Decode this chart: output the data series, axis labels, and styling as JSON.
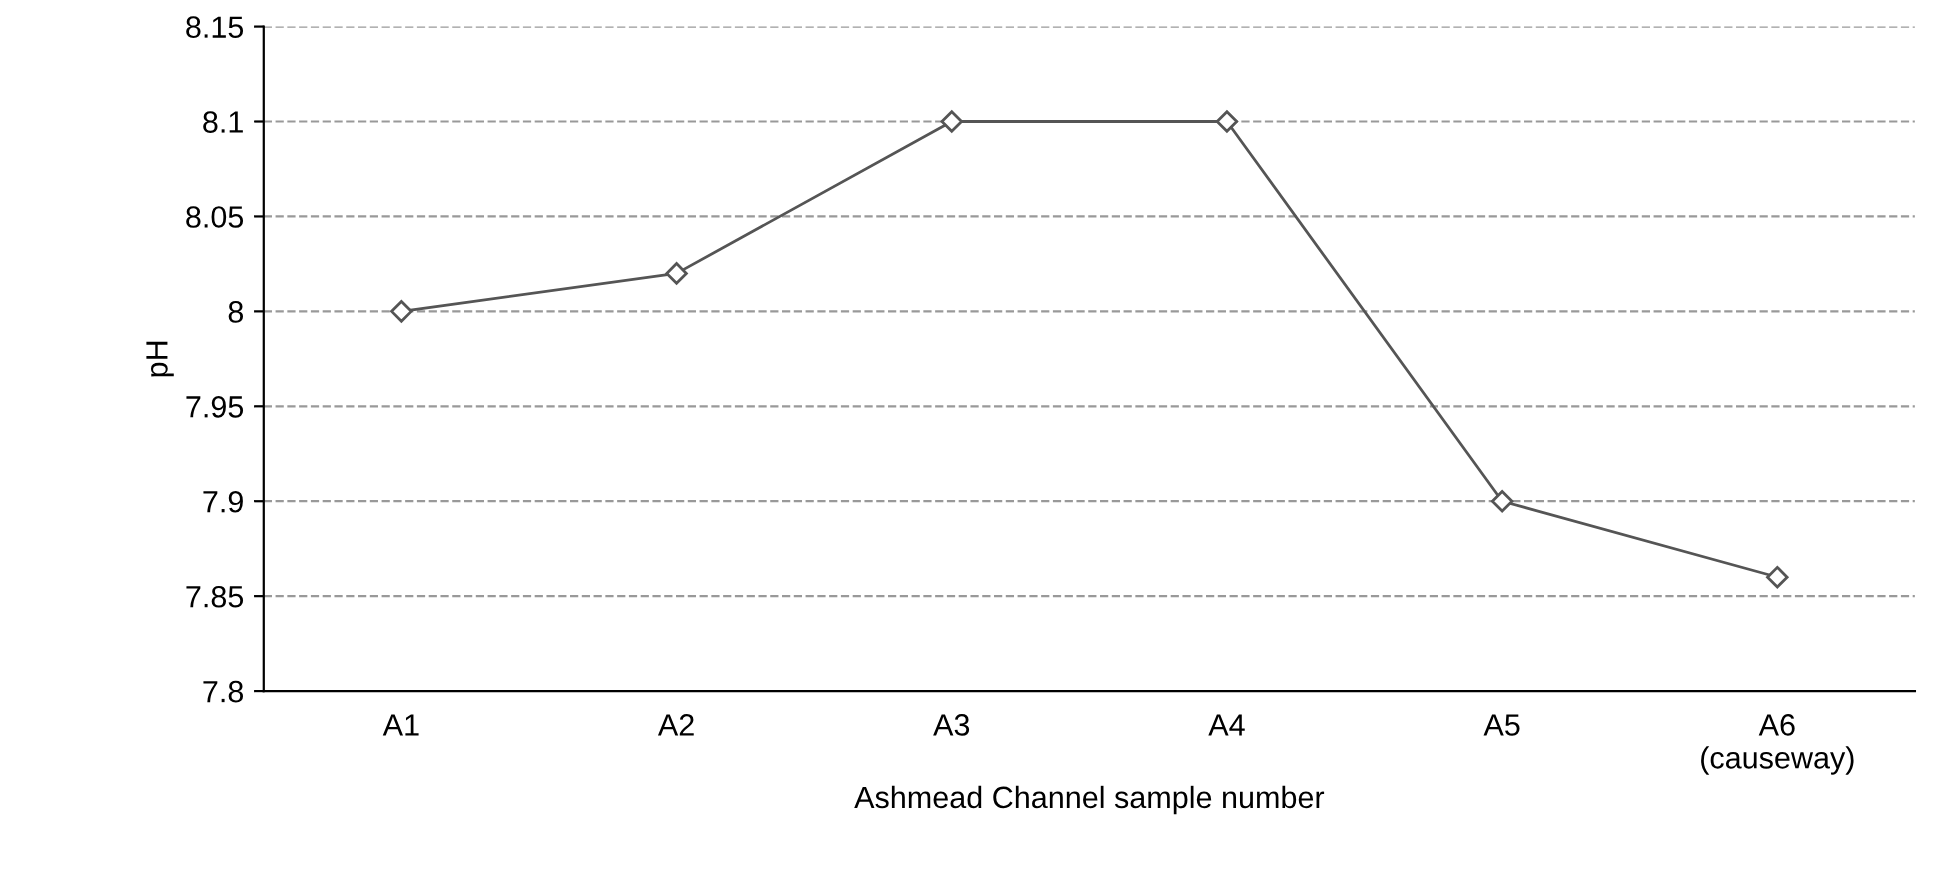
{
  "chart_data": {
    "type": "line",
    "xlabel": "Ashmead Channel sample number",
    "ylabel": "pH",
    "categories": [
      "A1",
      "A2",
      "A3",
      "A4",
      "A5",
      "A6\n(causeway)"
    ],
    "series": [
      {
        "color": "#555555",
        "values": [
          8.0,
          8.02,
          8.1,
          8.1,
          7.9,
          7.86
        ]
      }
    ],
    "ylim": [
      7.8,
      8.15
    ],
    "yticks": [
      {
        "value": 7.8,
        "label": "7.8"
      },
      {
        "value": 7.85,
        "label": "7.85"
      },
      {
        "value": 7.9,
        "label": "7.9"
      },
      {
        "value": 7.95,
        "label": "7.95"
      },
      {
        "value": 8,
        "label": "8"
      },
      {
        "value": 8.05,
        "label": "8.05"
      },
      {
        "value": 8.1,
        "label": "8.1"
      },
      {
        "value": 8.15,
        "label": "8.15"
      }
    ],
    "grid": "y",
    "marker": "diamond",
    "line_style": "solid",
    "legend": false
  }
}
